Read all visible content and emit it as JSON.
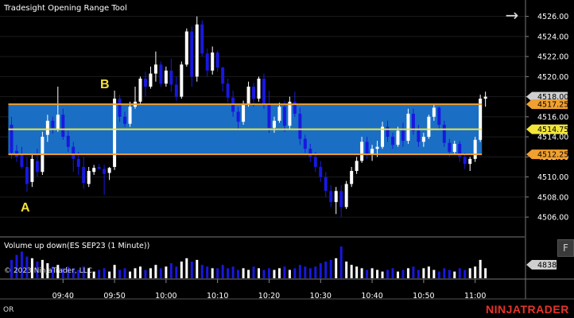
{
  "window": {
    "title": "Tradesight Opening Range Tool"
  },
  "markers": {
    "a": "A",
    "b": "B"
  },
  "volume_panel": {
    "title": "Volume up down(ES SEP23 (1 Minute))",
    "current_value": "4838"
  },
  "copyright": "© 2023 NinjaTrader, LLC",
  "bottom_left": "OR",
  "logo_text": "NINJATRADER",
  "f_button": "F",
  "colors": {
    "band_fill": "#1a6fc4",
    "range_line": "#f0a030",
    "mid_line": "#f2e63a",
    "up_bar": "#ffffff",
    "down_bar": "#1818e0",
    "background": "#000000"
  },
  "chart_data": {
    "type": "ohlc",
    "symbol": "ES SEP23",
    "interval": "1 Minute",
    "y_ticks": [
      "4526.00",
      "4524.00",
      "4522.00",
      "4520.00",
      "4518.00",
      "4516.00",
      "4514.00",
      "4512.00",
      "4510.00",
      "4508.00",
      "4506.00"
    ],
    "x_ticks": [
      "09:40",
      "09:50",
      "10:00",
      "10:10",
      "10:20",
      "10:30",
      "10:40",
      "10:50",
      "11:00"
    ],
    "ylim": [
      4504.5,
      4527
    ],
    "xlim": [
      0,
      100
    ],
    "x_tick_positions": [
      11,
      21,
      31,
      41,
      51,
      61,
      71,
      81,
      91
    ],
    "opening_range": {
      "high": 4517.25,
      "mid": 4514.75,
      "low": 4512.25,
      "start_index": 1,
      "end_index": 92
    },
    "price_labels": [
      {
        "value": 4518.0,
        "text": "4518.00",
        "style": "plain"
      },
      {
        "value": 4517.25,
        "text": "4517.25",
        "style": "range"
      },
      {
        "value": 4514.75,
        "text": "4514.75",
        "style": "mid"
      },
      {
        "value": 4512.25,
        "text": "4512.25",
        "style": "range"
      }
    ],
    "bars": [
      [
        4515.2,
        4516.0,
        4511.8,
        4512.4
      ],
      [
        4512.6,
        4513.2,
        4511.5,
        4512.0
      ],
      [
        4512.2,
        4513.0,
        4510.8,
        4511.0
      ],
      [
        4511.0,
        4512.0,
        4508.5,
        4509.3
      ],
      [
        4509.5,
        4512.2,
        4509.0,
        4511.8
      ],
      [
        4511.6,
        4512.8,
        4510.0,
        4510.5
      ],
      [
        4510.5,
        4514.5,
        4510.2,
        4514.0
      ],
      [
        4514.2,
        4516.2,
        4513.5,
        4515.6
      ],
      [
        4515.6,
        4516.0,
        4514.3,
        4514.9
      ],
      [
        4514.8,
        4519.0,
        4514.5,
        4516.2
      ],
      [
        4516.2,
        4516.8,
        4513.7,
        4514.0
      ],
      [
        4514.1,
        4514.6,
        4512.5,
        4513.0
      ],
      [
        4513.0,
        4513.5,
        4510.5,
        4511.8
      ],
      [
        4511.8,
        4512.5,
        4510.2,
        4511.0
      ],
      [
        4511.0,
        4512.0,
        4508.8,
        4509.4
      ],
      [
        4509.3,
        4511.0,
        4509.0,
        4510.6
      ],
      [
        4510.5,
        4511.2,
        4510.2,
        4510.9
      ],
      [
        4511.0,
        4511.3,
        4510.7,
        4510.8
      ],
      [
        4510.8,
        4511.2,
        4508.2,
        4510.3
      ],
      [
        4510.4,
        4511.0,
        4509.7,
        4510.9
      ],
      [
        4511.0,
        4518.6,
        4510.7,
        4517.8
      ],
      [
        4517.8,
        4518.2,
        4515.5,
        4516.0
      ],
      [
        4516.0,
        4516.5,
        4515.0,
        4515.3
      ],
      [
        4515.3,
        4517.5,
        4515.0,
        4517.0
      ],
      [
        4517.0,
        4519.0,
        4516.8,
        4517.5
      ],
      [
        4517.5,
        4520.0,
        4517.3,
        4519.8
      ],
      [
        4519.8,
        4520.5,
        4518.0,
        4519.0
      ],
      [
        4519.0,
        4521.0,
        4518.8,
        4520.3
      ],
      [
        4520.3,
        4522.5,
        4519.5,
        4521.2
      ],
      [
        4521.2,
        4521.5,
        4519.0,
        4519.3
      ],
      [
        4519.3,
        4521.0,
        4519.0,
        4520.6
      ],
      [
        4520.6,
        4521.8,
        4518.5,
        4519.2
      ],
      [
        4519.2,
        4520.0,
        4517.6,
        4518.0
      ],
      [
        4518.0,
        4521.5,
        4517.8,
        4521.2
      ],
      [
        4521.2,
        4524.8,
        4521.0,
        4524.5
      ],
      [
        4524.5,
        4525.0,
        4519.0,
        4520.0
      ],
      [
        4520.0,
        4526.0,
        4519.5,
        4525.2
      ],
      [
        4525.2,
        4525.6,
        4522.0,
        4522.3
      ],
      [
        4522.3,
        4522.8,
        4520.0,
        4520.6
      ],
      [
        4520.6,
        4523.0,
        4520.2,
        4522.4
      ],
      [
        4522.4,
        4522.6,
        4520.5,
        4520.9
      ],
      [
        4520.9,
        4521.0,
        4518.5,
        4519.3
      ],
      [
        4519.3,
        4519.8,
        4517.4,
        4517.9
      ],
      [
        4517.9,
        4518.6,
        4516.0,
        4516.5
      ],
      [
        4516.5,
        4517.0,
        4514.8,
        4515.5
      ],
      [
        4515.5,
        4517.6,
        4515.2,
        4517.3
      ],
      [
        4517.3,
        4519.5,
        4517.0,
        4519.0
      ],
      [
        4519.0,
        4519.4,
        4517.0,
        4517.8
      ],
      [
        4517.8,
        4520.0,
        4517.5,
        4519.8
      ],
      [
        4519.8,
        4520.3,
        4516.8,
        4517.2
      ],
      [
        4517.2,
        4518.6,
        4514.4,
        4514.9
      ],
      [
        4514.9,
        4516.0,
        4514.4,
        4515.6
      ],
      [
        4515.6,
        4517.4,
        4515.4,
        4517.0
      ],
      [
        4517.0,
        4517.6,
        4514.5,
        4515.1
      ],
      [
        4515.1,
        4518.0,
        4514.8,
        4517.5
      ],
      [
        4517.5,
        4518.5,
        4516.0,
        4516.3
      ],
      [
        4516.3,
        4516.9,
        4513.2,
        4513.8
      ],
      [
        4513.8,
        4514.2,
        4512.4,
        4512.8
      ],
      [
        4512.8,
        4513.3,
        4511.5,
        4512.0
      ],
      [
        4512.0,
        4512.5,
        4510.5,
        4511.0
      ],
      [
        4511.0,
        4511.6,
        4509.5,
        4510.0
      ],
      [
        4510.0,
        4510.5,
        4508.0,
        4508.6
      ],
      [
        4508.6,
        4509.2,
        4507.0,
        4507.5
      ],
      [
        4507.5,
        4509.0,
        4506.3,
        4508.6
      ],
      [
        4508.6,
        4509.2,
        4506.0,
        4507.0
      ],
      [
        4507.0,
        4509.6,
        4506.8,
        4509.3
      ],
      [
        4509.3,
        4511.0,
        4509.0,
        4510.6
      ],
      [
        4510.6,
        4512.0,
        4510.3,
        4511.6
      ],
      [
        4511.6,
        4514.0,
        4511.4,
        4513.5
      ],
      [
        4513.5,
        4514.0,
        4511.8,
        4512.2
      ],
      [
        4512.2,
        4513.2,
        4511.6,
        4512.8
      ],
      [
        4512.8,
        4513.6,
        4512.0,
        4513.0
      ],
      [
        4513.0,
        4515.5,
        4512.8,
        4515.0
      ],
      [
        4515.0,
        4515.6,
        4513.5,
        4514.0
      ],
      [
        4514.0,
        4514.4,
        4512.8,
        4513.2
      ],
      [
        4513.2,
        4515.0,
        4513.0,
        4514.6
      ],
      [
        4514.6,
        4515.4,
        4513.0,
        4513.6
      ],
      [
        4513.6,
        4516.8,
        4513.3,
        4516.3
      ],
      [
        4516.3,
        4516.8,
        4514.2,
        4514.6
      ],
      [
        4514.6,
        4515.2,
        4513.0,
        4513.5
      ],
      [
        4513.5,
        4514.4,
        4513.0,
        4514.0
      ],
      [
        4514.0,
        4516.2,
        4513.8,
        4516.0
      ],
      [
        4516.0,
        4517.2,
        4515.6,
        4516.9
      ],
      [
        4516.9,
        4517.0,
        4514.8,
        4515.2
      ],
      [
        4515.2,
        4515.6,
        4513.0,
        4513.4
      ],
      [
        4513.4,
        4513.8,
        4512.0,
        4512.5
      ],
      [
        4512.5,
        4513.6,
        4512.3,
        4513.3
      ],
      [
        4513.3,
        4513.6,
        4511.5,
        4512.0
      ],
      [
        4512.0,
        4512.4,
        4510.8,
        4511.3
      ],
      [
        4511.3,
        4512.0,
        4510.6,
        4511.8
      ],
      [
        4511.8,
        4514.0,
        4511.5,
        4513.7
      ],
      [
        4513.7,
        4518.2,
        4513.5,
        4517.8
      ],
      [
        4517.8,
        4518.5,
        4517.0,
        4518.0
      ]
    ],
    "volume": [
      0.55,
      0.7,
      0.8,
      0.65,
      0.6,
      0.5,
      0.55,
      0.45,
      0.35,
      0.4,
      0.3,
      0.35,
      0.3,
      0.25,
      0.35,
      0.3,
      0.2,
      0.25,
      0.3,
      0.2,
      0.4,
      0.25,
      0.3,
      0.2,
      0.3,
      0.35,
      0.25,
      0.3,
      0.4,
      0.3,
      0.35,
      0.45,
      0.35,
      0.5,
      0.6,
      0.5,
      0.55,
      0.4,
      0.35,
      0.3,
      0.3,
      0.4,
      0.3,
      0.35,
      0.25,
      0.3,
      0.25,
      0.35,
      0.3,
      0.25,
      0.3,
      0.25,
      0.3,
      0.35,
      0.25,
      0.3,
      0.4,
      0.35,
      0.3,
      0.35,
      0.45,
      0.5,
      0.55,
      0.6,
      0.95,
      0.5,
      0.4,
      0.35,
      0.3,
      0.25,
      0.3,
      0.25,
      0.2,
      0.25,
      0.3,
      0.2,
      0.25,
      0.3,
      0.35,
      0.25,
      0.3,
      0.35,
      0.25,
      0.2,
      0.3,
      0.25,
      0.2,
      0.3,
      0.25,
      0.3,
      0.35,
      0.55,
      0.3
    ]
  }
}
